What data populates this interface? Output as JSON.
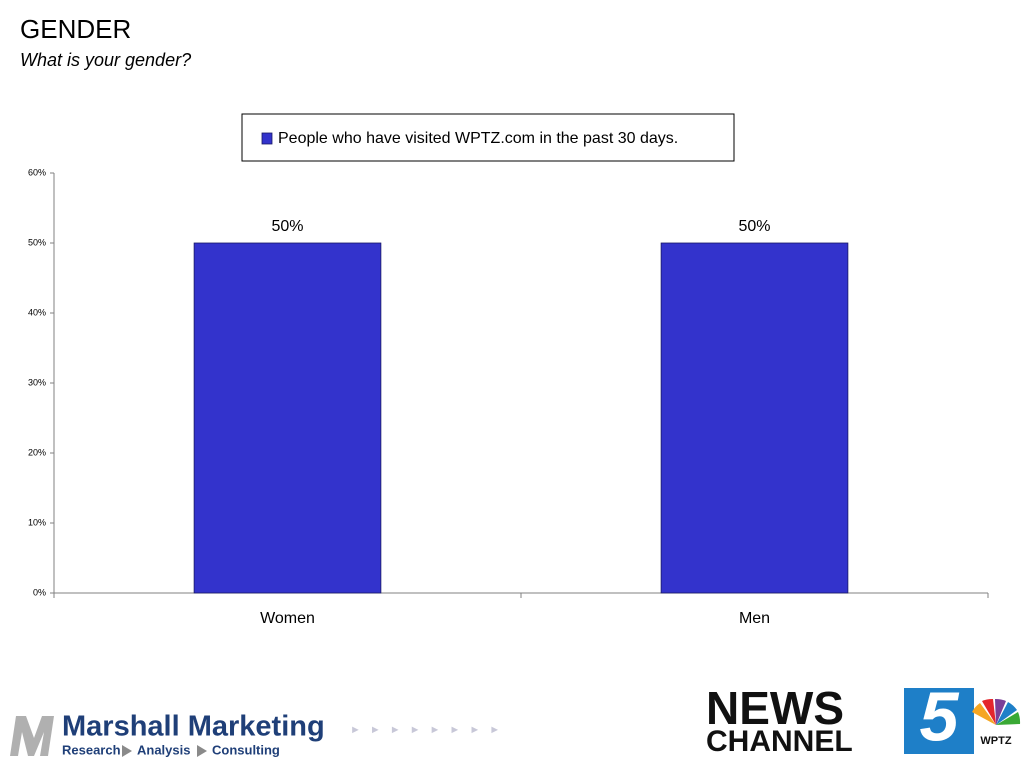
{
  "chart_data": {
    "type": "bar",
    "title": "GENDER",
    "subtitle": "What is your gender?",
    "categories": [
      "Women",
      "Men"
    ],
    "series": [
      {
        "name": "People who have visited WPTZ.com in the past 30 days.",
        "color": "#3333cc",
        "values": [
          50,
          50
        ],
        "value_labels": [
          "50%",
          "50%"
        ]
      }
    ],
    "ylim": [
      0,
      60
    ],
    "yticks": [
      {
        "value": 0,
        "label": "0%"
      },
      {
        "value": 10,
        "label": "10%"
      },
      {
        "value": 20,
        "label": "20%"
      },
      {
        "value": 30,
        "label": "30%"
      },
      {
        "value": 40,
        "label": "40%"
      },
      {
        "value": 50,
        "label": "50%"
      },
      {
        "value": 60,
        "label": "60%"
      }
    ],
    "grid": false,
    "legend": "top"
  },
  "footer": {
    "left_logo": {
      "name": "Marshall Marketing",
      "tagline": [
        "Research",
        "Analysis",
        "Consulting"
      ]
    },
    "right_logo": {
      "line1": "NEWS",
      "line2": "CHANNEL",
      "number": "5",
      "call": "WPTZ"
    }
  }
}
